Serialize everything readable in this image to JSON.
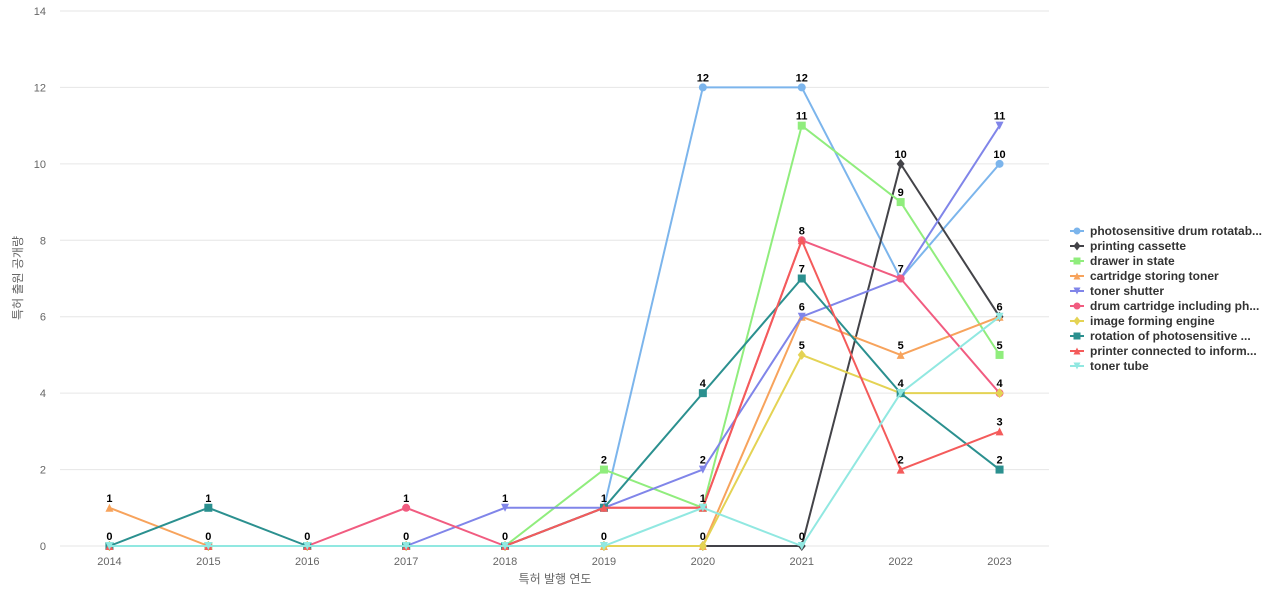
{
  "chart_data": {
    "type": "line",
    "title": "",
    "xlabel": "특허 발행 연도",
    "ylabel": "특허 출원 공개량",
    "x": [
      "2014",
      "2015",
      "2016",
      "2017",
      "2018",
      "2019",
      "2020",
      "2021",
      "2022",
      "2023"
    ],
    "ylim": [
      0,
      14
    ],
    "yticks": [
      0,
      2,
      4,
      6,
      8,
      10,
      12,
      14
    ],
    "grid": true,
    "legend": "right",
    "series": [
      {
        "name": "photosensitive drum rotatab...",
        "color": "#7cb5ec",
        "marker": "circle",
        "values": [
          0,
          0,
          0,
          0,
          0,
          1,
          12,
          12,
          7,
          10
        ]
      },
      {
        "name": "printing cassette",
        "color": "#434348",
        "marker": "diamond",
        "values": [
          0,
          0,
          0,
          0,
          0,
          0,
          0,
          0,
          10,
          6
        ]
      },
      {
        "name": "drawer in state",
        "color": "#90ed7d",
        "marker": "square",
        "values": [
          0,
          0,
          0,
          0,
          0,
          2,
          1,
          11,
          9,
          5
        ]
      },
      {
        "name": "cartridge storing toner",
        "color": "#f7a35c",
        "marker": "triangle",
        "values": [
          1,
          0,
          0,
          0,
          0,
          0,
          0,
          6,
          5,
          6
        ]
      },
      {
        "name": "toner shutter",
        "color": "#8085e9",
        "marker": "triangle-down",
        "values": [
          0,
          0,
          0,
          0,
          1,
          1,
          2,
          6,
          7,
          11
        ]
      },
      {
        "name": "drum cartridge including ph...",
        "color": "#f15c80",
        "marker": "circle",
        "values": [
          0,
          0,
          0,
          1,
          0,
          1,
          1,
          8,
          7,
          4
        ]
      },
      {
        "name": "image forming engine",
        "color": "#e4d354",
        "marker": "diamond",
        "values": [
          0,
          0,
          0,
          0,
          0,
          0,
          0,
          5,
          4,
          4
        ]
      },
      {
        "name": "rotation of photosensitive ...",
        "color": "#2b908f",
        "marker": "square",
        "values": [
          0,
          1,
          0,
          0,
          0,
          1,
          4,
          7,
          4,
          2
        ]
      },
      {
        "name": "printer connected to inform...",
        "color": "#f45b5b",
        "marker": "triangle",
        "values": [
          0,
          0,
          0,
          0,
          0,
          1,
          1,
          8,
          2,
          3
        ]
      },
      {
        "name": "toner tube",
        "color": "#91e8e1",
        "marker": "triangle-down",
        "values": [
          0,
          0,
          0,
          0,
          0,
          0,
          1,
          0,
          4,
          6
        ]
      }
    ],
    "data_labels": [
      {
        "x": "2014",
        "text": "1"
      },
      {
        "x": "2014",
        "text": "0"
      },
      {
        "x": "2015",
        "text": "1"
      },
      {
        "x": "2015",
        "text": "0"
      },
      {
        "x": "2016",
        "text": "0"
      },
      {
        "x": "2017",
        "text": "1"
      },
      {
        "x": "2017",
        "text": "0"
      },
      {
        "x": "2018",
        "text": "1"
      },
      {
        "x": "2018",
        "text": "0"
      },
      {
        "x": "2019",
        "text": "2"
      },
      {
        "x": "2019",
        "text": "1"
      },
      {
        "x": "2019",
        "text": "0"
      },
      {
        "x": "2020",
        "text": "12"
      },
      {
        "x": "2020",
        "text": "4"
      },
      {
        "x": "2020",
        "text": "2"
      },
      {
        "x": "2020",
        "text": "1"
      },
      {
        "x": "2020",
        "text": "0"
      },
      {
        "x": "2021",
        "text": "12"
      },
      {
        "x": "2021",
        "text": "11"
      },
      {
        "x": "2021",
        "text": "8"
      },
      {
        "x": "2021",
        "text": "7"
      },
      {
        "x": "2021",
        "text": "6"
      },
      {
        "x": "2021",
        "text": "5"
      },
      {
        "x": "2021",
        "text": "0"
      },
      {
        "x": "2022",
        "text": "10"
      },
      {
        "x": "2022",
        "text": "9"
      },
      {
        "x": "2022",
        "text": "7"
      },
      {
        "x": "2022",
        "text": "5"
      },
      {
        "x": "2022",
        "text": "4"
      },
      {
        "x": "2022",
        "text": "2"
      },
      {
        "x": "2023",
        "text": "11"
      },
      {
        "x": "2023",
        "text": "10"
      },
      {
        "x": "2023",
        "text": "6"
      },
      {
        "x": "2023",
        "text": "5"
      },
      {
        "x": "2023",
        "text": "4"
      },
      {
        "x": "2023",
        "text": "3"
      },
      {
        "x": "2023",
        "text": "2"
      }
    ]
  }
}
